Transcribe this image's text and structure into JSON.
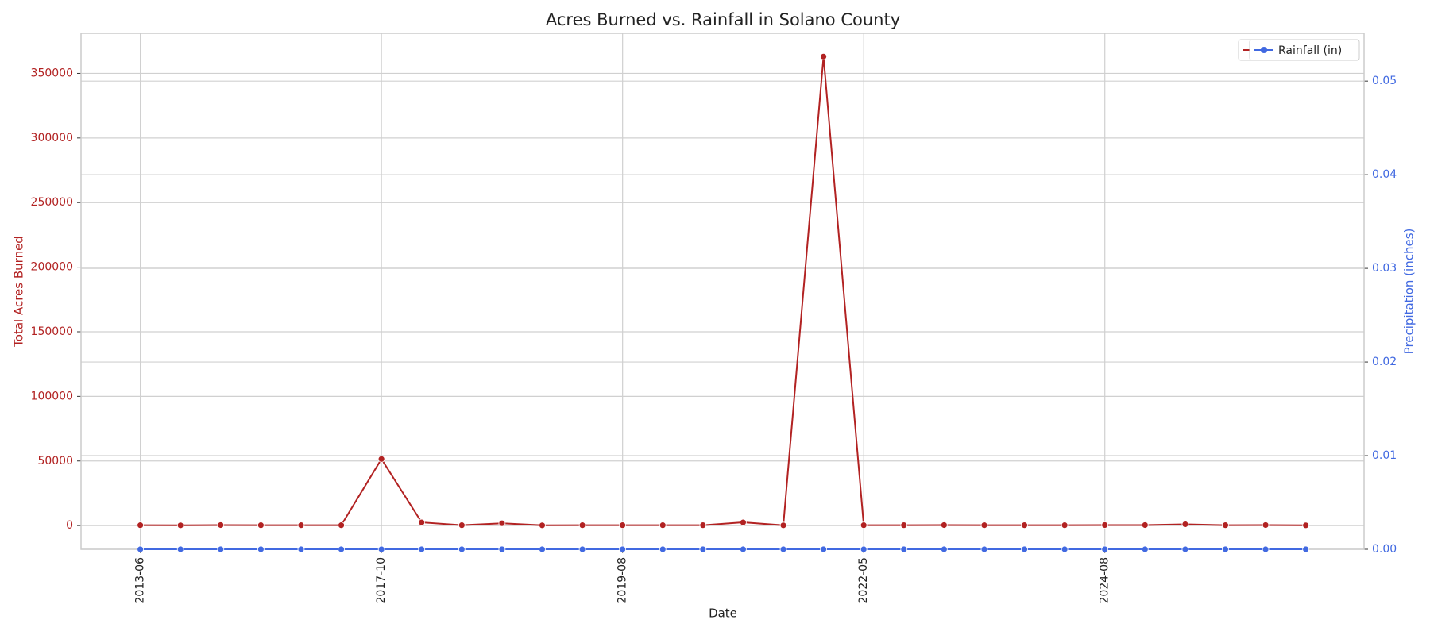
{
  "chart_data": {
    "type": "line",
    "title": "Acres Burned vs. Rainfall in Solano County",
    "xlabel": "Date",
    "ylabel": "Total Acres Burned",
    "y2label": "Precipitation (inches)",
    "categories": [
      "2013-06",
      null,
      null,
      null,
      null,
      null,
      "2017-10",
      null,
      null,
      null,
      null,
      null,
      "2019-08",
      null,
      null,
      null,
      null,
      null,
      "2022-05",
      null,
      null,
      null,
      null,
      null,
      "2024-08",
      null,
      null,
      null,
      null,
      null
    ],
    "series": [
      {
        "name": "Acres Burned",
        "color": "#b22222",
        "axis": "y",
        "values": [
          300,
          200,
          400,
          300,
          300,
          300,
          51500,
          2500,
          300,
          1800,
          200,
          300,
          300,
          300,
          300,
          2500,
          200,
          363000,
          300,
          300,
          400,
          300,
          300,
          300,
          400,
          400,
          1000,
          300,
          400,
          200
        ]
      },
      {
        "name": "Rainfall (in)",
        "color": "#4169e1",
        "axis": "y2",
        "values": [
          0,
          0,
          0,
          0,
          0,
          0,
          0,
          0,
          0,
          0,
          0,
          0,
          0,
          0,
          0,
          0,
          0,
          0,
          0,
          0,
          0,
          0,
          0,
          0,
          0,
          0,
          0,
          0,
          0,
          0
        ]
      }
    ],
    "ylim": [
      -18350,
      381000
    ],
    "yticks": [
      0,
      50000,
      100000,
      150000,
      200000,
      250000,
      300000,
      350000
    ],
    "y2lim": [
      0,
      0.0551
    ],
    "y2ticks": [
      {
        "value": 0,
        "label": "0.00"
      },
      {
        "value": 0.01,
        "label": "0.01"
      },
      {
        "value": 0.02,
        "label": "0.02"
      },
      {
        "value": 0.03,
        "label": "0.03"
      },
      {
        "value": 0.04,
        "label": "0.04"
      },
      {
        "value": 0.05,
        "label": "0.05"
      }
    ],
    "grid": true,
    "legend": "upper right"
  }
}
